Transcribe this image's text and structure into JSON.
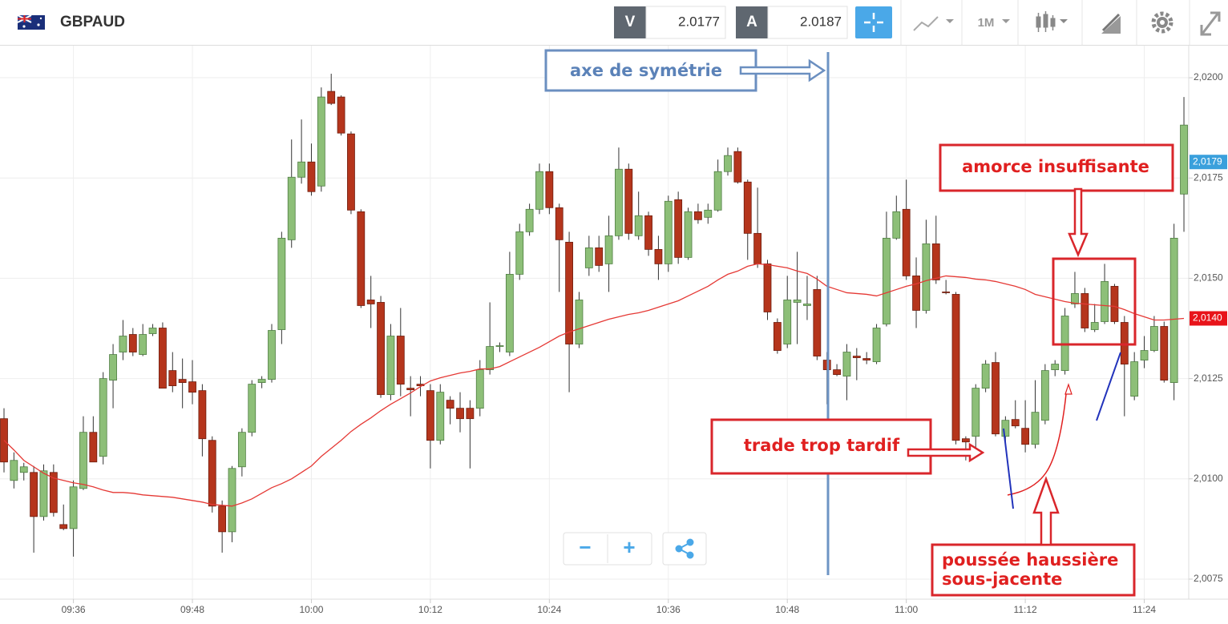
{
  "header": {
    "symbol": "GBPAUD",
    "bid_label": "V",
    "bid": 2.0177,
    "ask_label": "A",
    "ask": 2.0187,
    "timeframe": "1M"
  },
  "controls": {
    "zoom_out": "−",
    "zoom_in": "+"
  },
  "chart_data": {
    "type": "candlestick",
    "categories": [
      null,
      null,
      null,
      null,
      null,
      null,
      null,
      "09:36",
      null,
      null,
      null,
      null,
      null,
      null,
      null,
      null,
      null,
      null,
      null,
      "09:48",
      null,
      null,
      null,
      null,
      null,
      null,
      null,
      null,
      null,
      null,
      null,
      "10:00",
      null,
      null,
      null,
      null,
      null,
      null,
      null,
      null,
      null,
      null,
      null,
      "10:12",
      null,
      null,
      null,
      null,
      null,
      null,
      null,
      null,
      null,
      null,
      null,
      "10:24",
      null,
      null,
      null,
      null,
      null,
      null,
      null,
      null,
      null,
      null,
      null,
      "10:36",
      null,
      null,
      null,
      null,
      null,
      null,
      null,
      null,
      null,
      null,
      null,
      "10:48",
      null,
      null,
      null,
      null,
      null,
      null,
      null,
      null,
      null,
      null,
      null,
      "11:00",
      null,
      null,
      null,
      null,
      null,
      null,
      null,
      null,
      null,
      null,
      null,
      "11:12",
      null,
      null,
      null,
      null,
      null,
      null,
      null,
      null,
      null,
      null,
      null,
      "11:24",
      null,
      null,
      null,
      null
    ],
    "open": [
      2.0115,
      2.00996,
      2.01016,
      2.01016,
      2.00906,
      2.01016,
      2.00886,
      2.00876,
      2.00976,
      2.01116,
      2.01056,
      2.01246,
      2.01316,
      2.0136,
      2.0131,
      2.01362,
      2.01376,
      2.0127,
      2.01248,
      2.01242,
      2.0122,
      2.01096,
      2.00932,
      2.00868,
      2.0103,
      2.01116,
      2.0124,
      2.01248,
      2.01372,
      2.01596,
      2.01752,
      2.0179,
      2.0173,
      2.01966,
      2.01952,
      2.0186,
      2.01666,
      2.01446,
      2.0144,
      2.0121,
      2.01356,
      2.01226,
      2.01236,
      2.0122,
      2.01096,
      2.01196,
      2.01176,
      2.01176,
      2.01176,
      2.01272,
      2.0133,
      2.01316,
      2.0151,
      2.01616,
      2.01672,
      2.01766,
      2.01676,
      2.0159,
      2.01336,
      2.01526,
      2.01576,
      2.01536,
      2.01606,
      2.01772,
      2.01606,
      2.01656,
      2.01572,
      2.01536,
      2.01696,
      2.01552,
      2.01666,
      2.01652,
      2.0167,
      2.01766,
      2.01816,
      2.0174,
      2.01612,
      2.01536,
      2.0139,
      2.01336,
      2.0144,
      2.01432,
      2.01472,
      2.01296,
      2.01272,
      2.01256,
      2.01306,
      2.013,
      2.01292,
      2.01386,
      2.016,
      2.01672,
      2.01506,
      2.0142,
      2.01586,
      2.01466,
      2.0146,
      2.011,
      2.01106,
      2.01226,
      2.0129,
      2.01106,
      2.01148,
      2.01126,
      2.01086,
      2.01146,
      2.01272,
      2.0127,
      2.01436,
      2.01462,
      2.01372,
      2.01392,
      2.0148,
      2.0139,
      2.01206,
      2.01296,
      2.0132,
      2.0138,
      2.0124,
      2.0171
    ],
    "high": [
      2.01176,
      2.01066,
      2.0104,
      2.01032,
      2.01036,
      2.01036,
      2.00936,
      2.00996,
      2.01156,
      2.01156,
      2.01266,
      2.01336,
      2.01396,
      2.01376,
      2.01386,
      2.01386,
      2.0139,
      2.01316,
      2.013,
      2.01296,
      2.01236,
      2.01106,
      2.00946,
      2.01032,
      2.01126,
      2.01246,
      2.01256,
      2.01386,
      2.01616,
      2.01846,
      2.01896,
      2.01836,
      2.01976,
      2.0201,
      2.01956,
      2.01866,
      2.01672,
      2.01506,
      2.01456,
      2.01386,
      2.01426,
      2.01256,
      2.01256,
      2.01236,
      2.01236,
      2.01206,
      2.01216,
      2.01196,
      2.01296,
      2.0144,
      2.0134,
      2.01566,
      2.01636,
      2.01686,
      2.01786,
      2.01786,
      2.01686,
      2.01616,
      2.01466,
      2.01606,
      2.01606,
      2.01656,
      2.01826,
      2.01786,
      2.01716,
      2.01666,
      2.01606,
      2.01706,
      2.01716,
      2.01676,
      2.01686,
      2.01686,
      2.01796,
      2.01826,
      2.01826,
      2.01746,
      2.01726,
      2.01546,
      2.014,
      2.01506,
      2.01566,
      2.01506,
      2.01506,
      2.01316,
      2.01286,
      2.01336,
      2.01326,
      2.01316,
      2.01386,
      2.01666,
      2.01706,
      2.01746,
      2.01552,
      2.01646,
      2.01656,
      2.01496,
      2.01466,
      2.01106,
      2.01236,
      2.01296,
      2.01316,
      2.01156,
      2.01196,
      2.01196,
      2.01246,
      2.01286,
      2.01296,
      2.01426,
      2.01516,
      2.01476,
      2.01436,
      2.01536,
      2.01486,
      2.01406,
      2.01316,
      2.01356,
      2.01406,
      2.01392,
      2.01636,
      2.01952
    ],
    "low": [
      2.01016,
      2.00976,
      2.00996,
      2.00816,
      2.00896,
      2.00906,
      2.00872,
      2.00806,
      2.00972,
      2.01042,
      2.01036,
      2.01176,
      2.01296,
      2.01306,
      2.01306,
      2.01356,
      2.01226,
      2.01216,
      2.01176,
      2.01186,
      2.01056,
      2.00916,
      2.00816,
      2.00842,
      2.01006,
      2.01106,
      2.01226,
      2.0124,
      2.01336,
      2.01576,
      2.01736,
      2.01706,
      2.01716,
      2.01932,
      2.01856,
      2.0166,
      2.01426,
      2.01376,
      2.01202,
      2.01196,
      2.01206,
      2.01156,
      2.01206,
      2.01026,
      2.01086,
      2.01136,
      2.01116,
      2.01026,
      2.01156,
      2.0126,
      2.01316,
      2.01306,
      2.01496,
      2.01606,
      2.0166,
      2.0166,
      2.01466,
      2.01216,
      2.01326,
      2.01506,
      2.01516,
      2.01466,
      2.01596,
      2.01596,
      2.01596,
      2.01556,
      2.01496,
      2.01516,
      2.01536,
      2.01546,
      2.01636,
      2.01636,
      2.01666,
      2.01756,
      2.01736,
      2.01546,
      2.01526,
      2.01396,
      2.01312,
      2.01326,
      2.01336,
      2.01396,
      2.01296,
      2.01186,
      2.01256,
      2.01196,
      2.01246,
      2.01286,
      2.01286,
      2.0138,
      2.01596,
      2.01496,
      2.01376,
      2.01412,
      2.01486,
      2.0146,
      2.01086,
      2.01046,
      2.01076,
      2.01216,
      2.01106,
      2.01086,
      2.01126,
      2.01066,
      2.01076,
      2.01136,
      2.01256,
      2.0126,
      2.01426,
      2.01366,
      2.01366,
      2.01386,
      2.01386,
      2.01156,
      2.01196,
      2.01276,
      2.01316,
      2.0124,
      2.01196,
      2.01616
    ],
    "close": [
      2.01042,
      2.01046,
      2.0103,
      2.00906,
      2.0102,
      2.00916,
      2.00876,
      2.0098,
      2.01116,
      2.01042,
      2.0125,
      2.0131,
      2.01356,
      2.01316,
      2.0136,
      2.01376,
      2.01226,
      2.01232,
      2.0124,
      2.01216,
      2.011,
      2.00932,
      2.00868,
      2.01026,
      2.01116,
      2.01236,
      2.01248,
      2.0137,
      2.016,
      2.01752,
      2.0179,
      2.01716,
      2.01952,
      2.01936,
      2.01862,
      2.0167,
      2.01432,
      2.01436,
      2.0121,
      2.01356,
      2.01236,
      2.01222,
      2.01232,
      2.01096,
      2.01216,
      2.01176,
      2.0115,
      2.0115,
      2.01272,
      2.0133,
      2.01332,
      2.0151,
      2.01616,
      2.01672,
      2.01766,
      2.01676,
      2.01596,
      2.01336,
      2.01446,
      2.01576,
      2.01532,
      2.01606,
      2.01772,
      2.01612,
      2.01656,
      2.01572,
      2.01536,
      2.01692,
      2.01552,
      2.01666,
      2.01646,
      2.0167,
      2.01766,
      2.01806,
      2.0174,
      2.01612,
      2.01536,
      2.01416,
      2.0132,
      2.01446,
      2.01446,
      2.01436,
      2.01306,
      2.01272,
      2.0126,
      2.01316,
      2.01302,
      2.01296,
      2.01376,
      2.016,
      2.01666,
      2.01506,
      2.0142,
      2.01586,
      2.01496,
      2.01464,
      2.01096,
      2.01092,
      2.01226,
      2.01286,
      2.01112,
      2.01146,
      2.01132,
      2.01086,
      2.01166,
      2.0127,
      2.01286,
      2.01406,
      2.01462,
      2.01376,
      2.0139,
      2.01492,
      2.01392,
      2.01286,
      2.01292,
      2.0132,
      2.0138,
      2.01246,
      2.016,
      2.01882
    ],
    "up_color": "#8dbf78",
    "down_color": "#b5351c",
    "moving_average": {
      "color": "#e53935",
      "values": [
        2.01096,
        2.01072,
        2.01046,
        2.0103,
        2.01014,
        2.01002,
        2.00996,
        2.0099,
        2.00986,
        2.0098,
        2.00972,
        2.00966,
        2.00966,
        2.00964,
        2.0096,
        2.00958,
        2.00956,
        2.00954,
        2.0095,
        2.00946,
        2.00942,
        2.00936,
        2.00934,
        2.00932,
        2.0094,
        2.0095,
        2.00964,
        2.00978,
        2.00988,
        2.01,
        2.01016,
        2.01032,
        2.01056,
        2.01076,
        2.01096,
        2.01118,
        2.01136,
        2.01152,
        2.0117,
        2.01186,
        2.012,
        2.01214,
        2.0123,
        2.01244,
        2.01252,
        2.01258,
        2.01264,
        2.01268,
        2.01274,
        2.01274,
        2.0128,
        2.01292,
        2.01304,
        2.01316,
        2.01328,
        2.01342,
        2.01356,
        2.01366,
        2.01374,
        2.01382,
        2.0139,
        2.01398,
        2.01404,
        2.0141,
        2.01414,
        2.0142,
        2.01428,
        2.01436,
        2.01444,
        2.01456,
        2.01468,
        2.0148,
        2.01496,
        2.0151,
        2.01518,
        2.0153,
        2.01536,
        2.01534,
        2.0153,
        2.01526,
        2.01518,
        2.01512,
        2.01498,
        2.0148,
        2.01472,
        2.01464,
        2.01462,
        2.0146,
        2.01456,
        2.01464,
        2.01472,
        2.0148,
        2.01486,
        2.01494,
        2.015,
        2.01506,
        2.01504,
        2.01502,
        2.01498,
        2.01496,
        2.01492,
        2.01486,
        2.0148,
        2.01472,
        2.0146,
        2.01454,
        2.01448,
        2.01442,
        2.01438,
        2.01436,
        2.01434,
        2.01432,
        2.0143,
        2.01422,
        2.01412,
        2.01404,
        2.01396,
        2.01396,
        2.01398,
        2.014
      ]
    },
    "ylim": [
      2.007,
      2.0208
    ],
    "yticks": [
      {
        "value": 2.0075,
        "label": "2,0075"
      },
      {
        "value": 2.01,
        "label": "2,0100"
      },
      {
        "value": 2.0125,
        "label": "2,0125"
      },
      {
        "value": 2.015,
        "label": "2,0150"
      },
      {
        "value": 2.0175,
        "label": "2,0175"
      },
      {
        "value": 2.02,
        "label": "2,0200"
      }
    ],
    "grid": true,
    "price_labels": [
      {
        "value": 2.0179,
        "label": "2,0179",
        "color": "#3aa0dc"
      },
      {
        "value": 2.014,
        "label": "2,0140",
        "color": "#e8141a"
      }
    ],
    "annotations": [
      "axe de symétrie",
      "amorce insuffisante",
      "trade trop tardif",
      [
        "poussée haussière",
        "sous-jacente"
      ]
    ]
  }
}
